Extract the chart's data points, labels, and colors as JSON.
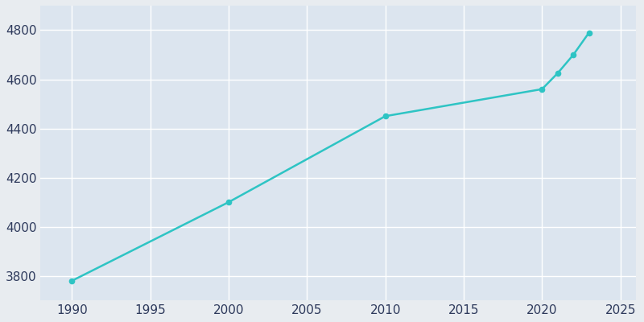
{
  "years": [
    1990,
    2000,
    2010,
    2020,
    2021,
    2022,
    2023
  ],
  "population": [
    3780,
    4100,
    4450,
    4560,
    4625,
    4700,
    4790
  ],
  "line_color": "#2ec4c4",
  "marker_color": "#2ec4c4",
  "fig_bg_color": "#e8ecf0",
  "plot_bg_color": "#dce5ef",
  "grid_color": "#ffffff",
  "tick_label_color": "#2e3a5c",
  "xlim": [
    1988,
    2026
  ],
  "ylim": [
    3700,
    4900
  ],
  "xticks": [
    1990,
    1995,
    2000,
    2005,
    2010,
    2015,
    2020,
    2025
  ],
  "yticks": [
    3800,
    4000,
    4200,
    4400,
    4600,
    4800
  ],
  "figsize": [
    8.0,
    4.0
  ],
  "dpi": 100,
  "linewidth": 1.8,
  "markersize": 4.5
}
